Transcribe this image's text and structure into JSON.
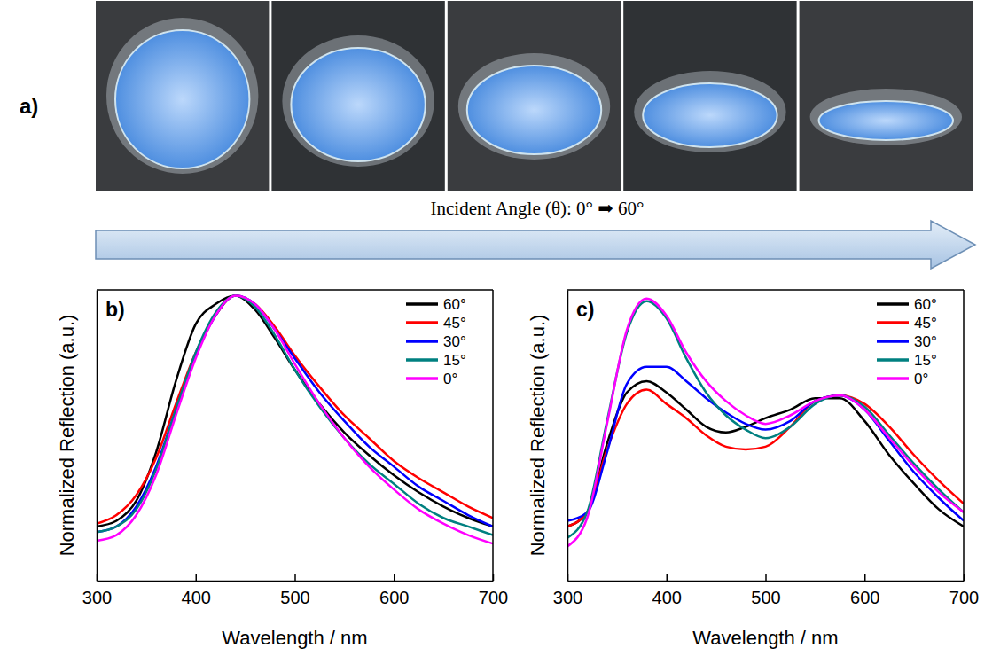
{
  "panel_a": {
    "label": "a)",
    "caption": "Incident Angle (θ): 0° ➡ 60°"
  },
  "chart_data": [
    {
      "type": "line",
      "title": "b)",
      "x_label": "Wavelength / nm",
      "y_label": "Normalized Reflection (a.u.)",
      "x": [
        300,
        320,
        340,
        360,
        380,
        400,
        420,
        440,
        460,
        480,
        500,
        525,
        550,
        575,
        600,
        625,
        650,
        675,
        700
      ],
      "xlim": [
        300,
        700
      ],
      "xticks": [
        300,
        400,
        500,
        600,
        700
      ],
      "ylim": [
        0,
        1.02
      ],
      "tick_labels": "x",
      "grid": false,
      "legend": "upper right",
      "series": [
        {
          "name": "60°",
          "color": "#000000",
          "values": [
            0.19,
            0.21,
            0.28,
            0.45,
            0.7,
            0.9,
            0.97,
            1.0,
            0.95,
            0.85,
            0.74,
            0.62,
            0.52,
            0.44,
            0.37,
            0.31,
            0.26,
            0.22,
            0.19
          ]
        },
        {
          "name": "45°",
          "color": "#ff0000",
          "values": [
            0.2,
            0.23,
            0.3,
            0.43,
            0.62,
            0.8,
            0.93,
            1.0,
            0.97,
            0.89,
            0.79,
            0.68,
            0.58,
            0.5,
            0.42,
            0.36,
            0.31,
            0.26,
            0.22
          ]
        },
        {
          "name": "30°",
          "color": "#0000ff",
          "values": [
            0.17,
            0.19,
            0.26,
            0.4,
            0.6,
            0.79,
            0.93,
            1.0,
            0.97,
            0.88,
            0.78,
            0.66,
            0.56,
            0.47,
            0.4,
            0.33,
            0.28,
            0.23,
            0.19
          ]
        },
        {
          "name": "15°",
          "color": "#008080",
          "values": [
            0.17,
            0.19,
            0.25,
            0.39,
            0.6,
            0.8,
            0.94,
            1.0,
            0.96,
            0.86,
            0.74,
            0.61,
            0.5,
            0.41,
            0.34,
            0.27,
            0.22,
            0.19,
            0.16
          ]
        },
        {
          "name": "0°",
          "color": "#ff00ff",
          "values": [
            0.14,
            0.16,
            0.23,
            0.37,
            0.58,
            0.78,
            0.93,
            1.0,
            0.97,
            0.88,
            0.76,
            0.62,
            0.5,
            0.4,
            0.32,
            0.25,
            0.2,
            0.16,
            0.13
          ]
        }
      ]
    },
    {
      "type": "line",
      "title": "c)",
      "x_label": "Wavelength / nm",
      "y_label": "Normalized Reflection (a.u.)",
      "x": [
        300,
        320,
        340,
        360,
        380,
        400,
        420,
        440,
        460,
        480,
        500,
        525,
        550,
        575,
        600,
        625,
        650,
        675,
        700
      ],
      "xlim": [
        300,
        700
      ],
      "xticks": [
        300,
        400,
        500,
        600,
        700
      ],
      "ylim": [
        0,
        1.02
      ],
      "tick_labels": "x",
      "grid": false,
      "legend": "upper right",
      "series": [
        {
          "name": "60°",
          "color": "#000000",
          "values": [
            0.19,
            0.24,
            0.48,
            0.66,
            0.7,
            0.66,
            0.6,
            0.54,
            0.52,
            0.54,
            0.57,
            0.6,
            0.64,
            0.64,
            0.56,
            0.44,
            0.34,
            0.25,
            0.19
          ]
        },
        {
          "name": "45°",
          "color": "#ff0000",
          "values": [
            0.19,
            0.24,
            0.46,
            0.62,
            0.67,
            0.62,
            0.57,
            0.51,
            0.47,
            0.46,
            0.47,
            0.54,
            0.63,
            0.65,
            0.62,
            0.54,
            0.44,
            0.35,
            0.27
          ]
        },
        {
          "name": "30°",
          "color": "#0000ff",
          "values": [
            0.21,
            0.24,
            0.45,
            0.69,
            0.75,
            0.75,
            0.7,
            0.64,
            0.59,
            0.55,
            0.53,
            0.56,
            0.63,
            0.65,
            0.6,
            0.49,
            0.38,
            0.29,
            0.21
          ]
        },
        {
          "name": "15°",
          "color": "#008080",
          "values": [
            0.15,
            0.24,
            0.56,
            0.87,
            0.98,
            0.92,
            0.78,
            0.66,
            0.58,
            0.53,
            0.5,
            0.54,
            0.62,
            0.65,
            0.61,
            0.51,
            0.41,
            0.32,
            0.24
          ]
        },
        {
          "name": "0°",
          "color": "#ff00ff",
          "values": [
            0.12,
            0.22,
            0.55,
            0.88,
            0.99,
            0.93,
            0.8,
            0.7,
            0.63,
            0.58,
            0.55,
            0.58,
            0.63,
            0.65,
            0.6,
            0.5,
            0.4,
            0.31,
            0.24
          ]
        }
      ]
    }
  ]
}
